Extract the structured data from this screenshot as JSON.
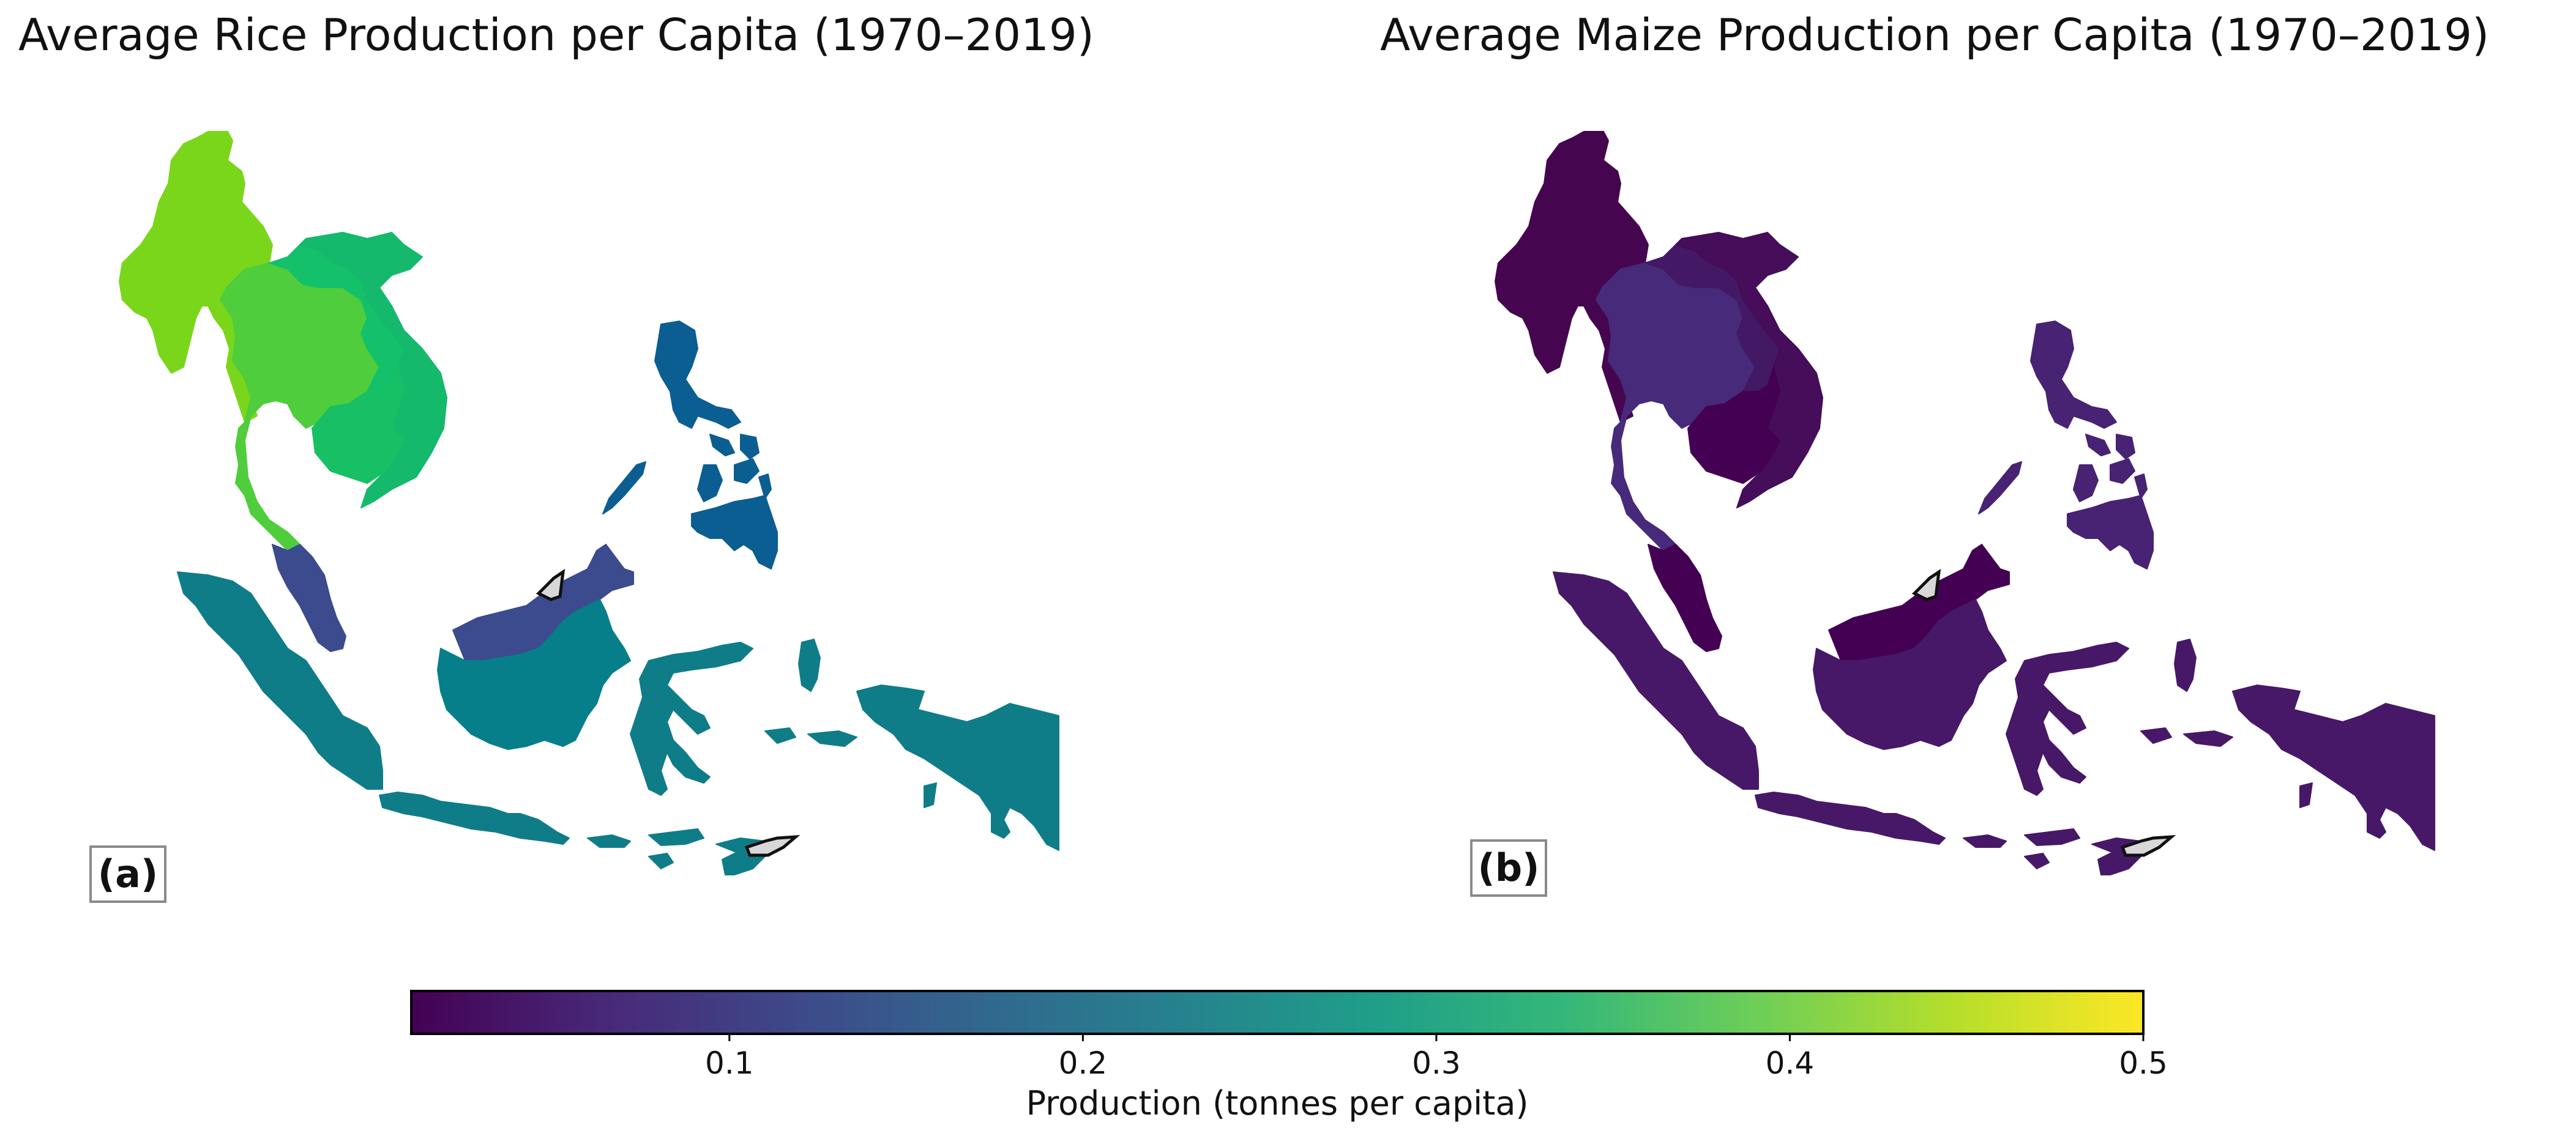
{
  "panels": [
    {
      "id": "rice",
      "title": "Average Rice Production per Capita (1970–2019)",
      "tag": "(a)",
      "colors": {
        "myanmar": "#7ad61a",
        "thailand": "#4fcd3c",
        "laos": "#14c16a",
        "vietnam": "#14b96c",
        "cambodia": "#17c064",
        "peninsular_malaysia": "#3c4b8e",
        "sabah_sarawak": "#3c4b8e",
        "borneo_kalimantan": "#067f8a",
        "sumatra": "#0f7d88",
        "java": "#0f7d88",
        "sulawesi": "#0f7d88",
        "lesser_sunda": "#0f7d88",
        "moluccas": "#0f7d88",
        "papua": "#0f7d88",
        "philippines": "#0b5e92",
        "timor": "#0f7d88"
      }
    },
    {
      "id": "maize",
      "title": "Average Maize Production per Capita (1970–2019)",
      "tag": "(b)",
      "colors": {
        "myanmar": "#46064f",
        "thailand": "#472a7a",
        "laos": "#431966",
        "vietnam": "#450d5a",
        "cambodia": "#440154",
        "peninsular_malaysia": "#440154",
        "sabah_sarawak": "#440154",
        "borneo_kalimantan": "#481868",
        "sumatra": "#481868",
        "java": "#481868",
        "sulawesi": "#481868",
        "lesser_sunda": "#481868",
        "moluccas": "#481868",
        "papua": "#481868",
        "philippines": "#482273",
        "timor": "#481868"
      }
    }
  ],
  "colorbar": {
    "label": "Production (tonnes per capita)",
    "min": 0.01,
    "max": 0.5,
    "ticks": [
      {
        "value": 0.1,
        "label": "0.1"
      },
      {
        "value": 0.2,
        "label": "0.2"
      },
      {
        "value": 0.3,
        "label": "0.3"
      },
      {
        "value": 0.4,
        "label": "0.4"
      },
      {
        "value": 0.5,
        "label": "0.5"
      }
    ],
    "stops": [
      "#440154",
      "#482878",
      "#3e4989",
      "#31688e",
      "#26828e",
      "#1f9e89",
      "#35b779",
      "#6ece58",
      "#b5de2b",
      "#fde725"
    ]
  }
}
